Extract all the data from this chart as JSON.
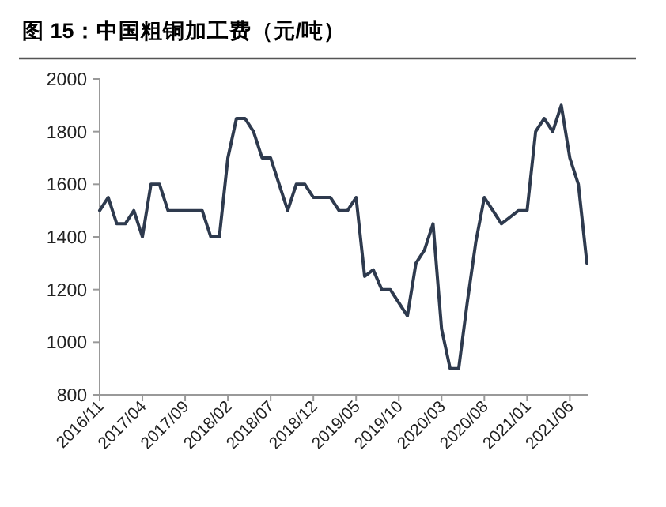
{
  "chart_data": {
    "type": "line",
    "title": "图 15：中国粗铜加工费（元/吨）",
    "categories": [
      "2016/11",
      null,
      null,
      null,
      null,
      "2017/04",
      null,
      null,
      null,
      null,
      "2017/09",
      null,
      null,
      null,
      null,
      "2018/02",
      null,
      null,
      null,
      null,
      "2018/07",
      null,
      null,
      null,
      null,
      "2018/12",
      null,
      null,
      null,
      null,
      "2019/05",
      null,
      null,
      null,
      null,
      "2019/10",
      null,
      null,
      null,
      null,
      "2020/03",
      null,
      null,
      null,
      null,
      "2020/08",
      null,
      null,
      null,
      null,
      "2021/01",
      null,
      null,
      null,
      null,
      "2021/06",
      null,
      null
    ],
    "series": [
      {
        "color": "#2e3a4e",
        "values": [
          1500,
          1550,
          1450,
          1450,
          1500,
          1400,
          1600,
          1600,
          1500,
          1500,
          1500,
          1500,
          1500,
          1400,
          1400,
          1700,
          1850,
          1850,
          1800,
          1700,
          1700,
          1600,
          1500,
          1600,
          1600,
          1550,
          1550,
          1550,
          1500,
          1500,
          1550,
          1250,
          1275,
          1200,
          1200,
          1150,
          1100,
          1300,
          1350,
          1450,
          1050,
          900,
          900,
          1150,
          1380,
          1550,
          1500,
          1450,
          1475,
          1500,
          1500,
          1800,
          1850,
          1800,
          1900,
          1700,
          1600,
          1300
        ]
      }
    ],
    "ylim": [
      800,
      2000
    ],
    "yticks": [
      800,
      1000,
      1200,
      1400,
      1600,
      1800,
      2000
    ],
    "grid": false
  }
}
